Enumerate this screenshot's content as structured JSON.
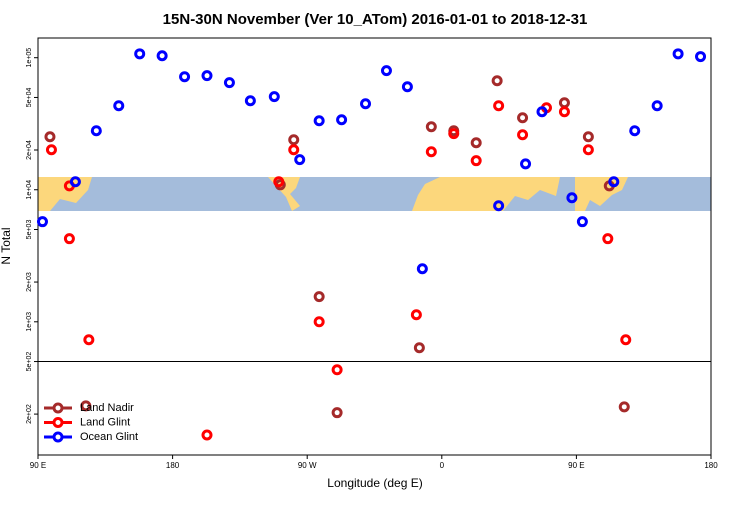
{
  "chart_data": {
    "type": "scatter",
    "title": "15N-30N November (Ver 10_ATom)   2016-01-01 to 2018-12-31",
    "xlabel": "Longitude (deg E)",
    "ylabel": "N Total",
    "ylog": true,
    "xlim": [
      90,
      540
    ],
    "ylim": [
      98,
      141000
    ],
    "xticks": [
      {
        "value": 90,
        "label": "90 E"
      },
      {
        "value": 180,
        "label": "180"
      },
      {
        "value": 270,
        "label": "90 W"
      },
      {
        "value": 360,
        "label": "0"
      },
      {
        "value": 450,
        "label": "90 E"
      },
      {
        "value": 540,
        "label": "180"
      }
    ],
    "yticks": [
      {
        "value": 200,
        "label": "2e+02"
      },
      {
        "value": 500,
        "label": "5e+02"
      },
      {
        "value": 1000,
        "label": "1e+03"
      },
      {
        "value": 2000,
        "label": "2e+03"
      },
      {
        "value": 5000,
        "label": "5e+03"
      },
      {
        "value": 10000,
        "label": "1e+04"
      },
      {
        "value": 20000,
        "label": "2e+04"
      },
      {
        "value": 50000,
        "label": "5e+04"
      },
      {
        "value": 100000,
        "label": "1e+05"
      }
    ],
    "hline": 500,
    "legend": "bottom-left",
    "series": [
      {
        "name": "Land Nadir",
        "color": "#a52a2a",
        "x": [
          98,
          122,
          252,
          261,
          278,
          290,
          345,
          353,
          368,
          383,
          397,
          414,
          442,
          458,
          472,
          482
        ],
        "values": [
          25200,
          231,
          10900,
          23900,
          1550,
          205,
          636,
          30000,
          28000,
          22700,
          66900,
          35100,
          45600,
          25200,
          10700,
          227
        ]
      },
      {
        "name": "Land Glint",
        "color": "#ff0000",
        "x": [
          99,
          111,
          111,
          124,
          203,
          251,
          261,
          278,
          290,
          343,
          353,
          368,
          383,
          398,
          414,
          430,
          442,
          458,
          471,
          483
        ],
        "values": [
          20100,
          10700,
          4260,
          731,
          139,
          11500,
          20100,
          1000,
          433,
          1130,
          19400,
          26600,
          16600,
          43300,
          26100,
          41800,
          39000,
          20100,
          4260,
          731
        ]
      },
      {
        "name": "Ocean Glint",
        "color": "#0000ff",
        "x": [
          93,
          115,
          129,
          144,
          158,
          173,
          188,
          203,
          218,
          232,
          248,
          265,
          278,
          293,
          309,
          323,
          337,
          347,
          398,
          416,
          427,
          447,
          454,
          475,
          489,
          504,
          518,
          533
        ],
        "values": [
          5730,
          11500,
          28000,
          43300,
          107000,
          103500,
          71800,
          73100,
          64700,
          47200,
          50700,
          16900,
          33300,
          33900,
          44800,
          79800,
          60300,
          2520,
          7570,
          15700,
          39000,
          8700,
          5730,
          11500,
          28000,
          43300,
          107000,
          102000
        ]
      }
    ]
  }
}
